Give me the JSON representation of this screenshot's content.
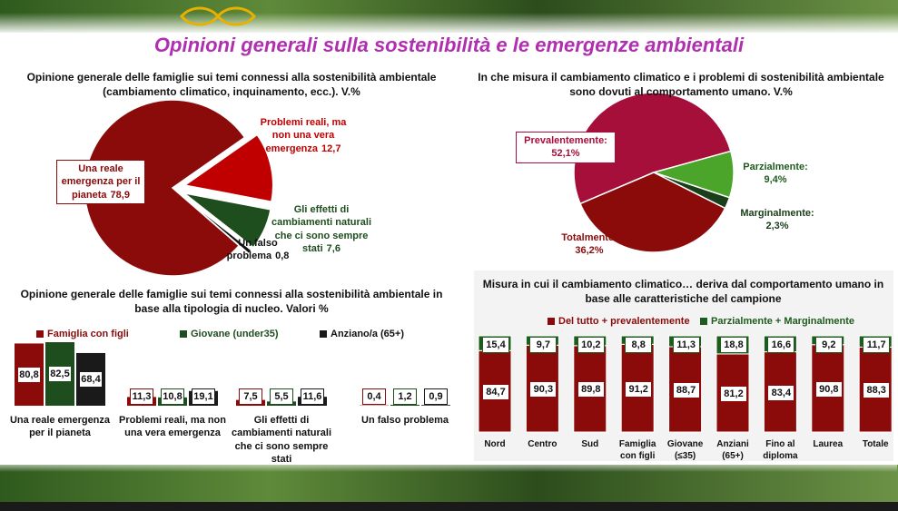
{
  "title": "Opinioni generali sulla sostenibilità e le emergenze ambientali",
  "chart_data": [
    {
      "type": "pie",
      "title": "Opinione generale delle famiglie sui temi connessi alla sostenibilità ambientale (cambiamento climatico, inquinamento, ecc.). V.%",
      "categories": [
        "Una reale emergenza per il pianeta",
        "Problemi reali, ma non una vera emergenza",
        "Gli effetti di cambiamenti naturali che ci sono sempre stati",
        "Un falso problema"
      ],
      "values": [
        78.9,
        12.7,
        7.6,
        0.8
      ],
      "value_labels": [
        "78,9",
        "12,7",
        "7,6",
        "0,8"
      ],
      "colors": [
        "#8b0a0a",
        "#c00000",
        "#1e4d1e",
        "#111111"
      ]
    },
    {
      "type": "pie",
      "title": "In che misura il cambiamento climatico e i problemi di sostenibilità ambientale sono dovuti al comportamento umano. V.%",
      "categories": [
        "Prevalentemente:",
        "Parzialmente:",
        "Marginalmente:",
        "Totalmente:"
      ],
      "values": [
        52.1,
        9.4,
        2.3,
        36.2
      ],
      "value_labels": [
        "52,1%",
        "9,4%",
        "2,3%",
        "36,2%"
      ],
      "colors": [
        "#a50f3a",
        "#4aa52a",
        "#1a3d1a",
        "#8b0a0a"
      ]
    },
    {
      "type": "grouped-bar",
      "title": "Opinione generale delle famiglie sui temi connessi alla sostenibilità ambientale in base alla tipologia di nucleo. Valori %",
      "categories": [
        "Una reale emergenza per il pianeta",
        "Problemi reali, ma non una vera emergenza",
        "Gli effetti di cambiamenti naturali che ci sono sempre stati",
        "Un falso problema"
      ],
      "series": [
        {
          "name": "Famiglia con figli",
          "color": "#8b0a0a",
          "values": [
            80.8,
            11.3,
            7.5,
            0.4
          ],
          "value_labels": [
            "80,8",
            "11,3",
            "7,5",
            "0,4"
          ]
        },
        {
          "name": "Giovane (under35)",
          "color": "#1e4d1e",
          "values": [
            82.5,
            10.8,
            5.5,
            1.2
          ],
          "value_labels": [
            "82,5",
            "10,8",
            "5,5",
            "1,2"
          ]
        },
        {
          "name": "Anziano/a (65+)",
          "color": "#1a1a1a",
          "values": [
            68.4,
            19.1,
            11.6,
            0.9
          ],
          "value_labels": [
            "68,4",
            "19,1",
            "11,6",
            "0,9"
          ]
        }
      ]
    },
    {
      "type": "stacked-bar",
      "title": "Misura in cui il cambiamento climatico… deriva dal comportamento umano in base alle caratteristiche del campione",
      "categories": [
        "Nord",
        "Centro",
        "Sud",
        "Famiglia con figli",
        "Giovane (≤35)",
        "Anziani (65+)",
        "Fino al diploma",
        "Laurea",
        "Totale"
      ],
      "series": [
        {
          "name": "Del tutto + prevalentemente",
          "color": "#8b0a0a",
          "values": [
            84.7,
            90.3,
            89.8,
            91.2,
            88.7,
            81.2,
            83.4,
            90.8,
            88.3
          ],
          "value_labels": [
            "84,7",
            "90,3",
            "89,8",
            "91,2",
            "88,7",
            "81,2",
            "83,4",
            "90,8",
            "88,3"
          ]
        },
        {
          "name": "Parzialmente + Marginalmente",
          "color": "#1e5c1e",
          "values": [
            15.4,
            9.7,
            10.2,
            8.8,
            11.3,
            18.8,
            16.6,
            9.2,
            11.7
          ],
          "value_labels": [
            "15,4",
            "9,7",
            "10,2",
            "8,8",
            "11,3",
            "18,8",
            "16,6",
            "9,2",
            "11,7"
          ]
        }
      ]
    }
  ]
}
